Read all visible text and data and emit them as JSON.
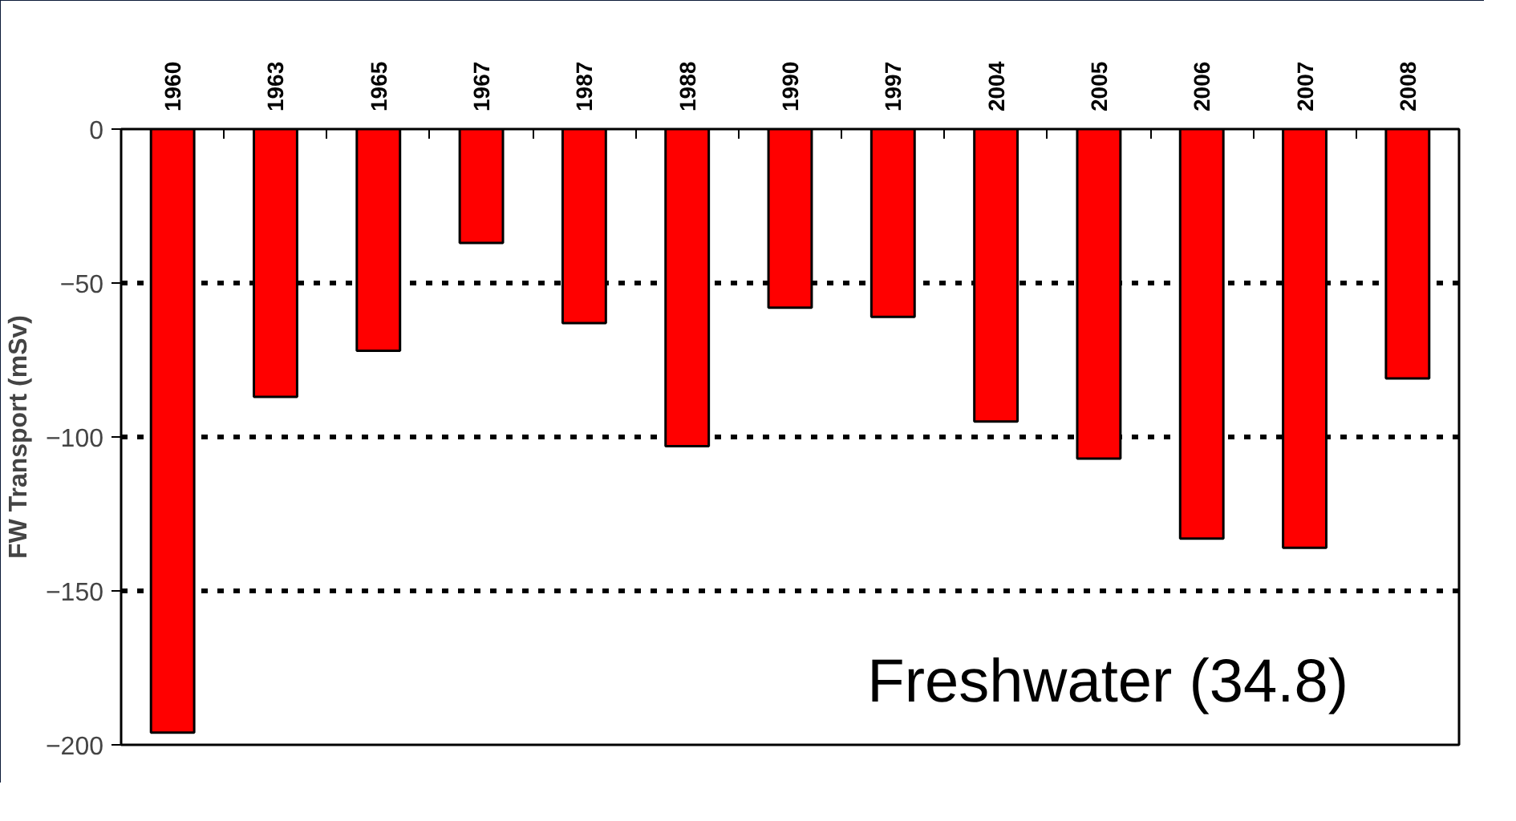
{
  "chart_data": {
    "type": "bar",
    "ylabel": "FW Transport (mSv)",
    "categories": [
      "1960",
      "1963",
      "1965",
      "1967",
      "1987",
      "1988",
      "1990",
      "1997",
      "2004",
      "2005",
      "2006",
      "2007",
      "2008"
    ],
    "values": [
      -196,
      -87,
      -72,
      -37,
      -63,
      -103,
      -58,
      -61,
      -95,
      -107,
      -133,
      -136,
      -81
    ],
    "color": "#ff0000",
    "ylim": [
      -200,
      0
    ],
    "yticks": [
      -200,
      -150,
      -100,
      -50,
      0
    ],
    "grid": "y",
    "annotations": [
      "Freshwater (34.8)"
    ]
  }
}
